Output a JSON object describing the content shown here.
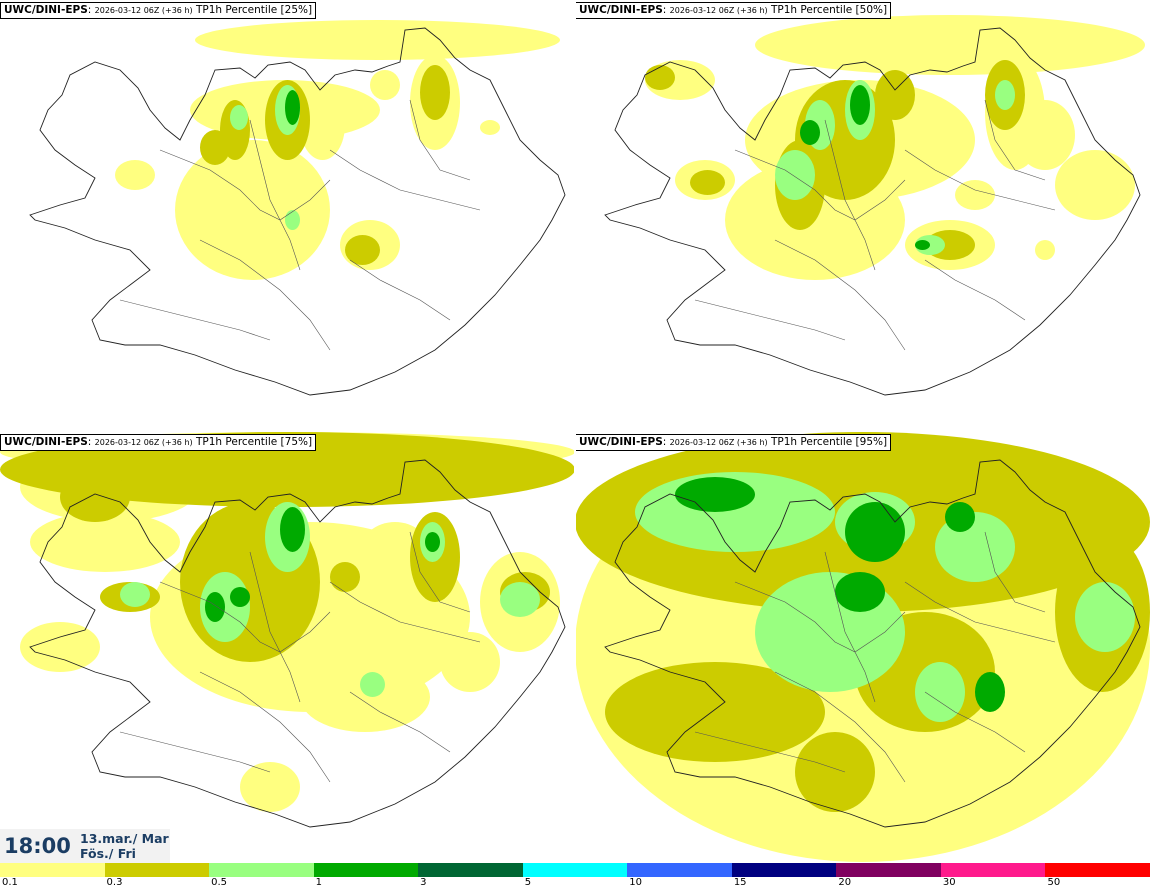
{
  "panels": [
    {
      "model": "UWC/DINI-EPS",
      "run": "2026-03-12 06Z (+36 h)",
      "field": "TP1h Percentile [25%]",
      "level": 0
    },
    {
      "model": "UWC/DINI-EPS",
      "run": "2026-03-12 06Z (+36 h)",
      "field": "TP1h Percentile [50%]",
      "level": 1
    },
    {
      "model": "UWC/DINI-EPS",
      "run": "2026-03-12 06Z (+36 h)",
      "field": "TP1h Percentile [75%]",
      "level": 2
    },
    {
      "model": "UWC/DINI-EPS",
      "run": "2026-03-12 06Z (+36 h)",
      "field": "TP1h Percentile [95%]",
      "level": 3
    }
  ],
  "valid_time": {
    "time": "18:00",
    "date_line1": "13.mar./ Mar",
    "date_line2": "Fös./ Fri"
  },
  "colorbar": {
    "colors": [
      "#ffff80",
      "#cccc00",
      "#99ff80",
      "#00aa00",
      "#006633",
      "#00ffff",
      "#3366ff",
      "#000080",
      "#800060",
      "#ff1a8c",
      "#ff0000"
    ],
    "labels": [
      "0.1",
      "0.3",
      "0.5",
      "1",
      "3",
      "5",
      "10",
      "15",
      "20",
      "30",
      "50"
    ]
  }
}
